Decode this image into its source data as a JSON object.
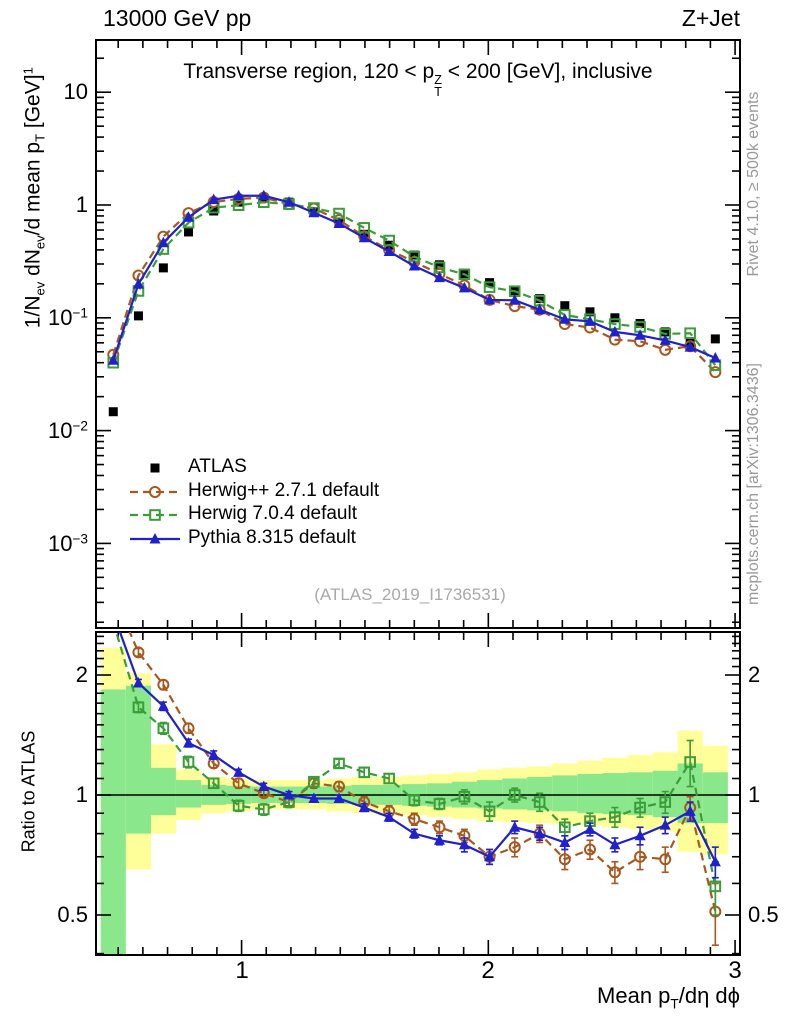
{
  "header": {
    "left": "13000 GeV pp",
    "right": "Z+Jet"
  },
  "main_panel": {
    "title": {
      "pre": "Transverse region, 120 < p",
      "sup": "Z",
      "sub": "T",
      "post": " < 200 [GeV], inclusive"
    },
    "ylabel": {
      "p1": "1/N",
      "s1": "ev",
      "p2": " dN",
      "s2": "ev",
      "p3": "/d mean p",
      "s3": "T",
      "p4": " [GeV]",
      "e4": "1"
    },
    "ytick_labels": [
      {
        "base": "10",
        "exp": ""
      },
      {
        "base": "1",
        "exp": ""
      },
      {
        "base": "10",
        "exp": "−1"
      },
      {
        "base": "10",
        "exp": "−2"
      },
      {
        "base": "10",
        "exp": "−3"
      }
    ]
  },
  "ratio_panel": {
    "ylabel": "Ratio to ATLAS",
    "ytick_labels": [
      "2",
      "1",
      "0.5"
    ]
  },
  "xaxis": {
    "tick_labels": [
      "1",
      "2",
      "3"
    ],
    "title": {
      "p1": "Mean p",
      "s1": "T",
      "p2": "/dη dϕ"
    }
  },
  "side_notes": {
    "top": "Rivet 4.1.0, ≥ 500k events",
    "bottom": "mcplots.cern.ch [arXiv:1306.3436]"
  },
  "watermark": "(ATLAS_2019_I1736531)",
  "legend": [
    {
      "label": "ATLAS",
      "marker": "filled-square",
      "color": "#000000",
      "line": "none"
    },
    {
      "label": "Herwig++ 2.7.1 default",
      "marker": "open-circle",
      "color": "#a8581e",
      "line": "dashed"
    },
    {
      "label": "Herwig 7.0.4 default",
      "marker": "open-square",
      "color": "#3a9d3a",
      "line": "dashed"
    },
    {
      "label": "Pythia 8.315 default",
      "marker": "filled-triangle",
      "color": "#2020cc",
      "line": "solid"
    }
  ],
  "colors": {
    "atlas": "#000000",
    "herwigpp": "#a8581e",
    "herwig7": "#3a9d3a",
    "pythia": "#2020cc",
    "band_yellow": "#ffff99",
    "band_green": "#8be78b",
    "watermark": "#a9a9a9",
    "side_note": "#999999"
  },
  "chart_data": {
    "type": "line",
    "description": "HEP MC-vs-data comparison: main panel log-y spectrum plus MC/data ratio panel with uncertainty bands",
    "title": "Transverse region, 120 < pT(Z) < 200 [GeV], inclusive",
    "xlabel": "Mean pT/dη dϕ",
    "ylabel": "1/Nev dNev/d mean pT [GeV]^-1",
    "ylabel_ratio": "Ratio to ATLAS",
    "xlim": [
      0.41,
      3.02
    ],
    "ylim_main": [
      0.0002,
      28
    ],
    "ylim_ratio": [
      0.397,
      2.56
    ],
    "x": [
      0.48,
      0.582,
      0.683,
      0.785,
      0.887,
      0.988,
      1.09,
      1.192,
      1.293,
      1.395,
      1.497,
      1.598,
      1.7,
      1.802,
      1.903,
      2.005,
      2.107,
      2.208,
      2.31,
      2.412,
      2.513,
      2.615,
      2.717,
      2.818,
      2.92
    ],
    "series": [
      {
        "name": "ATLAS",
        "role": "data",
        "marker": "filled-square",
        "line": "none",
        "color": "#000000",
        "values": [
          0.0147,
          0.104,
          0.277,
          0.577,
          0.885,
          1.06,
          1.15,
          1.06,
          0.87,
          0.7,
          0.55,
          0.44,
          0.36,
          0.295,
          0.245,
          0.205,
          0.172,
          0.148,
          0.128,
          0.113,
          0.1,
          0.089,
          0.075,
          0.06,
          0.065
        ]
      },
      {
        "name": "Herwig++ 2.7.1 default",
        "role": "mc",
        "marker": "open-circle",
        "line": "dashed",
        "color": "#a8581e",
        "values": [
          0.047,
          0.237,
          0.524,
          0.848,
          1.062,
          1.134,
          1.162,
          1.018,
          0.931,
          0.735,
          0.528,
          0.4,
          0.313,
          0.245,
          0.194,
          0.144,
          0.127,
          0.118,
          0.088,
          0.082,
          0.064,
          0.062,
          0.052,
          0.056,
          0.033
        ],
        "ratio": [
          3.2,
          2.28,
          1.89,
          1.47,
          1.2,
          1.07,
          1.01,
          0.96,
          1.07,
          1.05,
          0.96,
          0.91,
          0.87,
          0.83,
          0.79,
          0.7,
          0.74,
          0.8,
          0.69,
          0.73,
          0.64,
          0.7,
          0.69,
          0.93,
          0.51
        ],
        "ratio_err": [
          0.06,
          0.05,
          0.05,
          0.04,
          0.03,
          0.03,
          0.02,
          0.02,
          0.03,
          0.03,
          0.03,
          0.03,
          0.03,
          0.03,
          0.03,
          0.03,
          0.04,
          0.04,
          0.04,
          0.04,
          0.04,
          0.05,
          0.05,
          0.06,
          0.09
        ]
      },
      {
        "name": "Herwig 7.0.4 default",
        "role": "mc",
        "marker": "open-square",
        "line": "dashed",
        "color": "#3a9d3a",
        "values": [
          0.04,
          0.173,
          0.407,
          0.698,
          0.947,
          0.996,
          1.058,
          1.018,
          0.94,
          0.84,
          0.627,
          0.484,
          0.349,
          0.28,
          0.243,
          0.187,
          0.172,
          0.142,
          0.106,
          0.097,
          0.088,
          0.083,
          0.072,
          0.073,
          0.038
        ],
        "ratio": [
          2.72,
          1.66,
          1.47,
          1.21,
          1.07,
          0.94,
          0.92,
          0.96,
          1.08,
          1.2,
          1.14,
          1.1,
          0.97,
          0.95,
          0.99,
          0.91,
          1.0,
          0.96,
          0.83,
          0.86,
          0.88,
          0.93,
          0.96,
          1.21,
          0.59
        ],
        "ratio_err": [
          0.06,
          0.05,
          0.05,
          0.04,
          0.03,
          0.03,
          0.03,
          0.03,
          0.03,
          0.03,
          0.03,
          0.03,
          0.03,
          0.03,
          0.04,
          0.05,
          0.04,
          0.05,
          0.04,
          0.04,
          0.05,
          0.05,
          0.06,
          0.16,
          0.09
        ]
      },
      {
        "name": "Pythia 8.315 default",
        "role": "mc",
        "marker": "filled-triangle",
        "line": "solid",
        "color": "#2020cc",
        "values": [
          0.042,
          0.199,
          0.463,
          0.779,
          1.115,
          1.208,
          1.208,
          1.06,
          0.853,
          0.686,
          0.512,
          0.387,
          0.288,
          0.227,
          0.184,
          0.144,
          0.143,
          0.118,
          0.097,
          0.093,
          0.075,
          0.07,
          0.063,
          0.055,
          0.044
        ],
        "ratio": [
          2.85,
          1.91,
          1.67,
          1.35,
          1.26,
          1.14,
          1.05,
          1.0,
          0.98,
          0.98,
          0.93,
          0.88,
          0.8,
          0.77,
          0.75,
          0.7,
          0.83,
          0.8,
          0.76,
          0.82,
          0.75,
          0.79,
          0.84,
          0.91,
          0.68
        ],
        "ratio_err": [
          0.05,
          0.04,
          0.04,
          0.03,
          0.03,
          0.02,
          0.02,
          0.02,
          0.02,
          0.02,
          0.02,
          0.02,
          0.02,
          0.02,
          0.03,
          0.03,
          0.03,
          0.03,
          0.03,
          0.03,
          0.03,
          0.04,
          0.04,
          0.05,
          0.06
        ]
      }
    ],
    "bands": {
      "yellow_lo": [
        0.38,
        0.65,
        0.8,
        0.865,
        0.9,
        0.91,
        0.92,
        0.92,
        0.92,
        0.91,
        0.9,
        0.9,
        0.89,
        0.88,
        0.87,
        0.86,
        0.855,
        0.85,
        0.845,
        0.84,
        0.83,
        0.82,
        0.81,
        0.72,
        0.71
      ],
      "yellow_hi": [
        2.34,
        2.02,
        1.34,
        1.16,
        1.11,
        1.1,
        1.09,
        1.09,
        1.09,
        1.1,
        1.11,
        1.11,
        1.12,
        1.13,
        1.14,
        1.16,
        1.17,
        1.18,
        1.2,
        1.22,
        1.24,
        1.26,
        1.28,
        1.45,
        1.33
      ],
      "green_lo": [
        0.39,
        0.8,
        0.89,
        0.93,
        0.945,
        0.95,
        0.955,
        0.955,
        0.955,
        0.95,
        0.945,
        0.945,
        0.94,
        0.935,
        0.93,
        0.925,
        0.92,
        0.915,
        0.91,
        0.9,
        0.895,
        0.89,
        0.88,
        0.85,
        0.85
      ],
      "green_hi": [
        1.84,
        1.88,
        1.17,
        1.09,
        1.06,
        1.055,
        1.05,
        1.05,
        1.05,
        1.055,
        1.06,
        1.06,
        1.065,
        1.07,
        1.08,
        1.09,
        1.1,
        1.11,
        1.12,
        1.13,
        1.135,
        1.14,
        1.15,
        1.2,
        1.14
      ]
    },
    "legend_position": "upper-left-inside",
    "grid": false,
    "xticks_major": [
      1,
      2,
      3
    ],
    "yticks_main": [
      10,
      1,
      0.1,
      0.01,
      0.001
    ],
    "yticks_ratio": [
      2,
      1,
      0.5
    ]
  }
}
